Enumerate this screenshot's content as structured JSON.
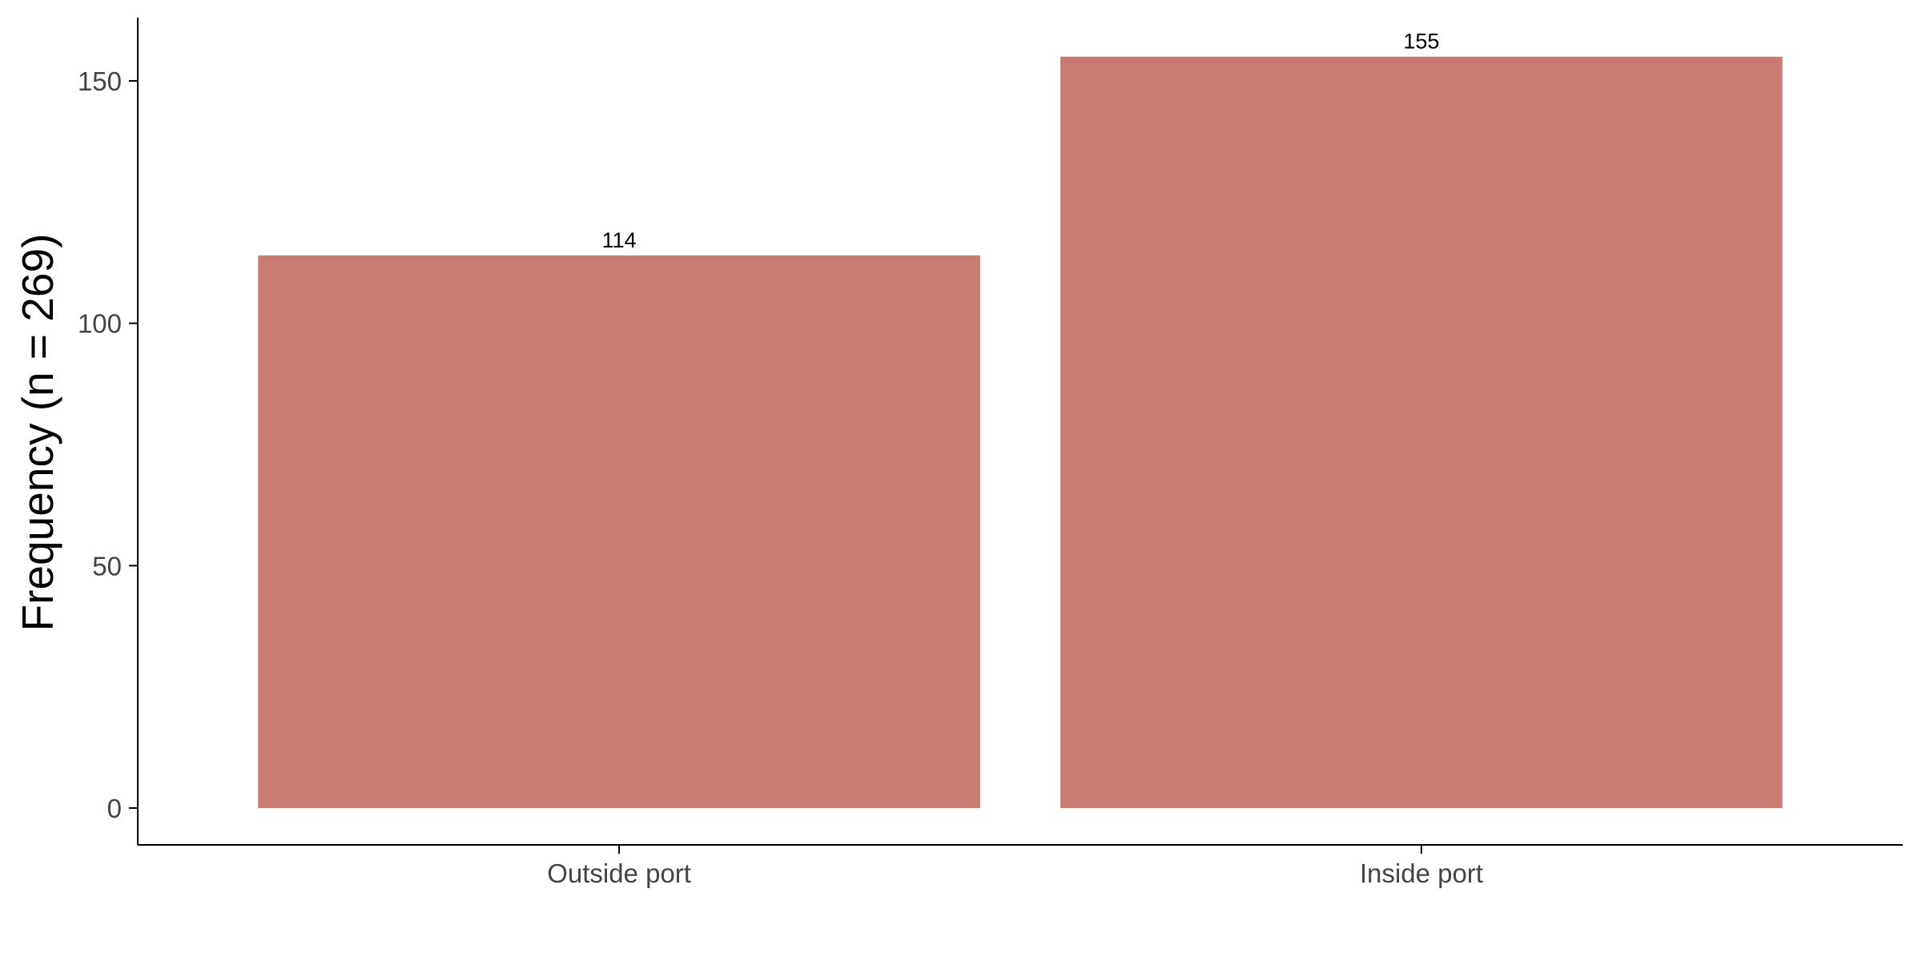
{
  "chart_data": {
    "type": "bar",
    "categories": [
      "Outside port",
      "Inside port"
    ],
    "values": [
      114,
      155
    ],
    "data_labels": [
      "114",
      "155"
    ],
    "title": "",
    "xlabel": "",
    "ylabel": "Frequency (n = 269)",
    "ylim": [
      0,
      162
    ],
    "yticks": [
      0,
      50,
      100,
      150
    ],
    "ytick_labels": [
      "0",
      "50",
      "100",
      "150"
    ],
    "grid": false,
    "legend": "none",
    "bar_color": "#c97a71"
  }
}
